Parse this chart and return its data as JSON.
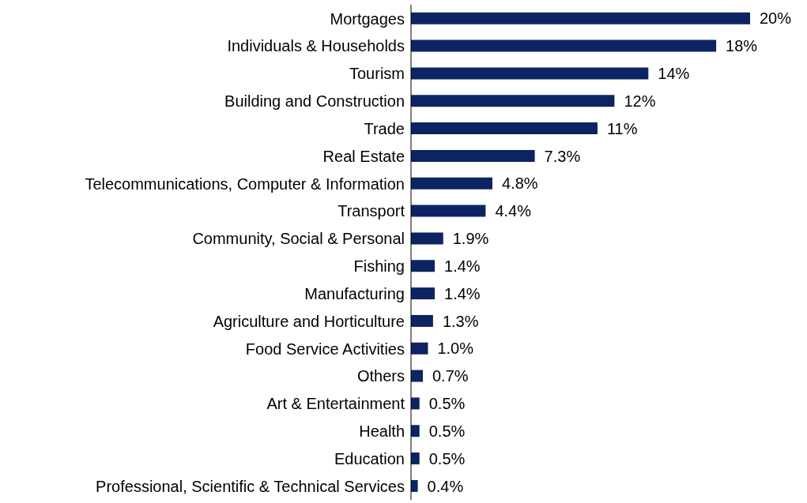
{
  "chart_data": {
    "type": "bar",
    "orientation": "horizontal",
    "categories": [
      "Mortgages",
      "Individuals & Households",
      "Tourism",
      "Building and Construction",
      "Trade",
      "Real Estate",
      "Telecommunications, Computer & Information",
      "Transport",
      "Community, Social & Personal",
      "Fishing",
      "Manufacturing",
      "Agriculture and Horticulture",
      "Food Service Activities",
      "Others",
      "Art & Entertainment",
      "Health",
      "Education",
      "Professional, Scientific & Technical Services"
    ],
    "values": [
      20,
      18,
      14,
      12,
      11,
      7.3,
      4.8,
      4.4,
      1.9,
      1.4,
      1.4,
      1.3,
      1.0,
      0.7,
      0.5,
      0.5,
      0.5,
      0.4
    ],
    "value_labels": [
      "20%",
      "18%",
      "14%",
      "12%",
      "11%",
      "7.3%",
      "4.8%",
      "4.4%",
      "1.9%",
      "1.4%",
      "1.4%",
      "1.3%",
      "1.0%",
      "0.7%",
      "0.5%",
      "0.5%",
      "0.5%",
      "0.4%"
    ],
    "color": "#0c2461"
  }
}
